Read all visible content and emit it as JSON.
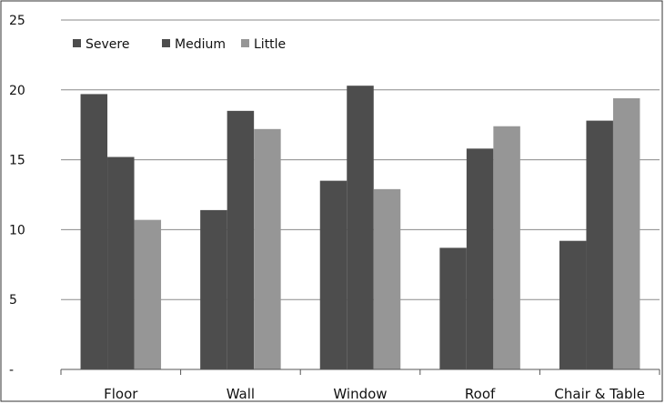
{
  "chart_data": {
    "type": "bar",
    "title": "",
    "xlabel": "",
    "ylabel": "",
    "categories": [
      "Floor",
      "Wall",
      "Window",
      "Roof",
      "Chair & Table"
    ],
    "series": [
      {
        "name": "Severe",
        "color": "#4d4d4d",
        "values": [
          19.7,
          11.4,
          13.5,
          8.7,
          9.2
        ]
      },
      {
        "name": "Medium",
        "color": "#4d4d4d",
        "values": [
          15.2,
          18.5,
          20.3,
          15.8,
          17.8
        ]
      },
      {
        "name": "Little",
        "color": "#969696",
        "values": [
          10.7,
          17.2,
          12.9,
          17.4,
          19.4
        ]
      }
    ],
    "yticks": [
      0,
      5,
      10,
      15,
      20,
      25
    ],
    "ytick_labels": [
      "-",
      "5",
      "10",
      "15",
      "20",
      "25"
    ],
    "ylim": [
      0,
      25
    ],
    "grid": true,
    "legend_position": "top-left"
  }
}
